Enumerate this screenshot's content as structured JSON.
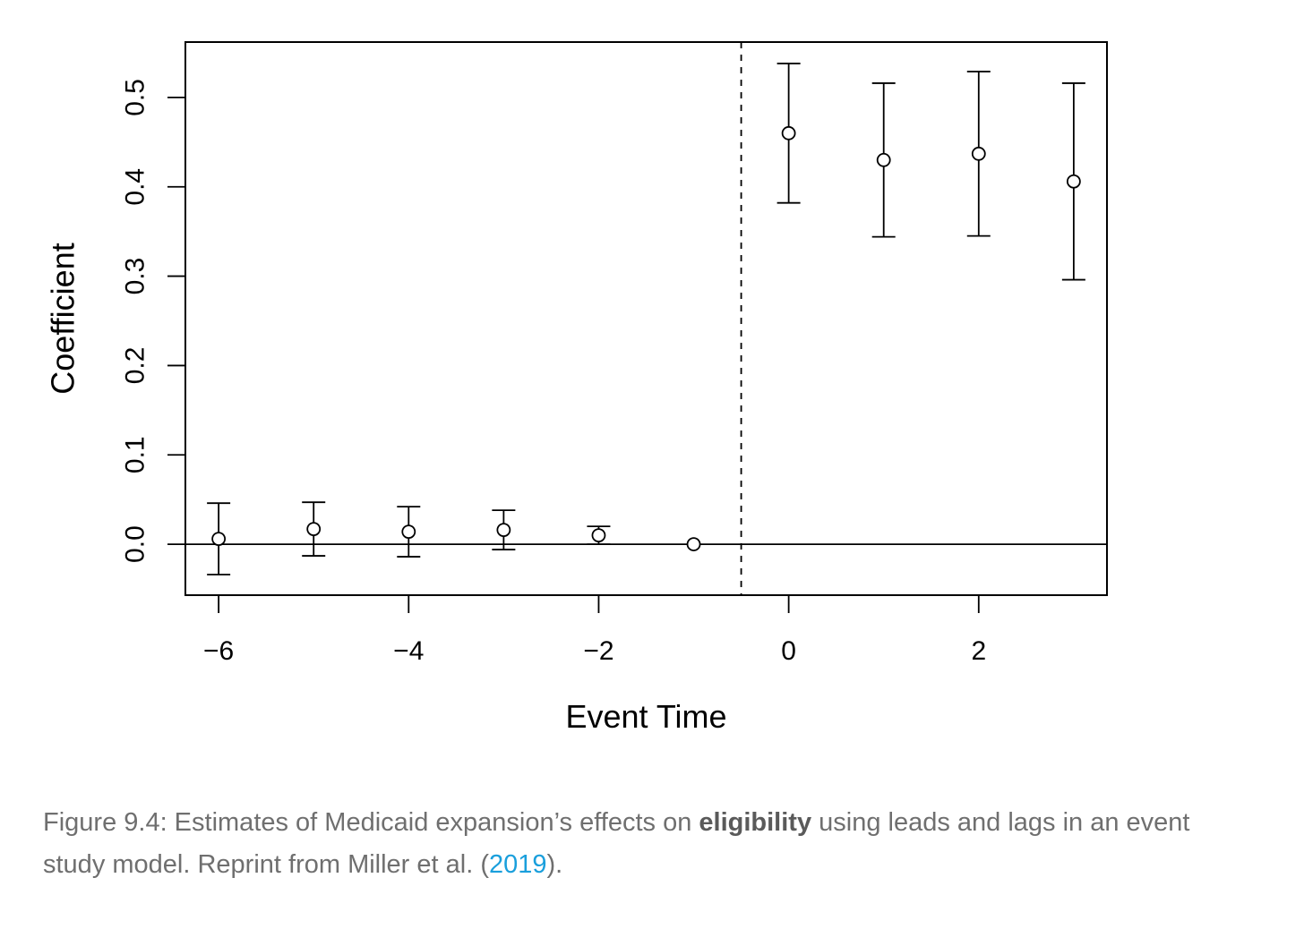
{
  "chart_data": {
    "type": "scatter",
    "title": "",
    "xlabel": "Event Time",
    "ylabel": "Coefficient",
    "xlim": [
      -6.35,
      3.35
    ],
    "ylim": [
      -0.057,
      0.562
    ],
    "x_ticks": [
      -6,
      -4,
      -2,
      0,
      2
    ],
    "x_tick_labels": [
      "−6",
      "−4",
      "−2",
      "0",
      "2"
    ],
    "y_ticks": [
      0.0,
      0.1,
      0.2,
      0.3,
      0.4,
      0.5
    ],
    "y_tick_labels": [
      "0.0",
      "0.1",
      "0.2",
      "0.3",
      "0.4",
      "0.5"
    ],
    "reference_line_y": 0,
    "vertical_dashed_line_x": -0.5,
    "grid": false,
    "points": [
      {
        "x": -6,
        "y": 0.006,
        "lower": -0.034,
        "upper": 0.046
      },
      {
        "x": -5,
        "y": 0.017,
        "lower": -0.013,
        "upper": 0.047
      },
      {
        "x": -4,
        "y": 0.014,
        "lower": -0.014,
        "upper": 0.042
      },
      {
        "x": -3,
        "y": 0.016,
        "lower": -0.006,
        "upper": 0.038
      },
      {
        "x": -2,
        "y": 0.01,
        "lower": 0.0,
        "upper": 0.02
      },
      {
        "x": -1,
        "y": 0.0,
        "lower": null,
        "upper": null
      },
      {
        "x": 0,
        "y": 0.46,
        "lower": 0.382,
        "upper": 0.538
      },
      {
        "x": 1,
        "y": 0.43,
        "lower": 0.344,
        "upper": 0.516
      },
      {
        "x": 2,
        "y": 0.437,
        "lower": 0.345,
        "upper": 0.529
      },
      {
        "x": 3,
        "y": 0.406,
        "lower": 0.296,
        "upper": 0.516
      }
    ]
  },
  "caption": {
    "prefix": "Figure 9.4: Estimates of Medicaid expansion’s effects on ",
    "bold": "eligibility",
    "middle": " using leads and lags in an event study model. Reprint from Miller et al. (",
    "link": "2019",
    "suffix": ")."
  }
}
